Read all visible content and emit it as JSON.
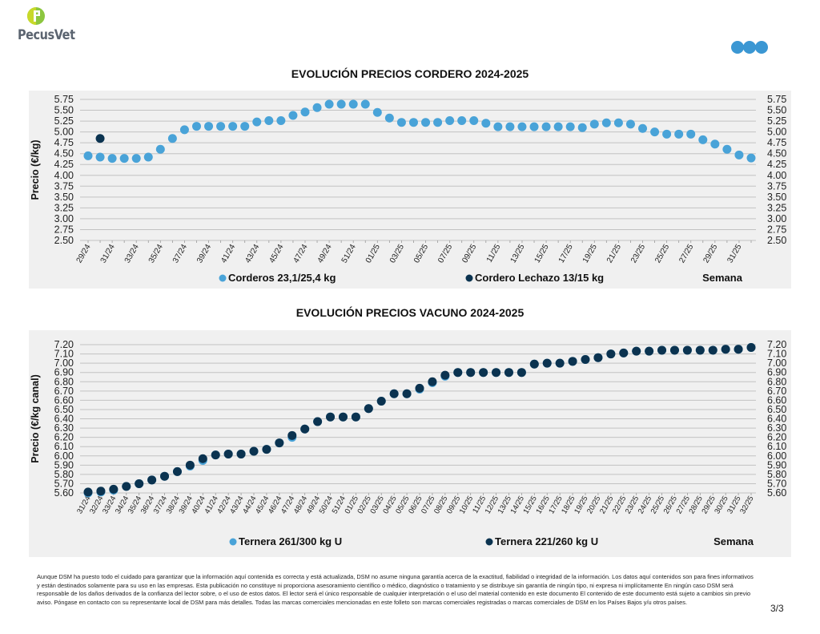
{
  "brand": {
    "name": "PecusVet",
    "logo_icon": "pecusvet-p-logo-icon",
    "accent": "#8cc63f",
    "dsm_dots_icon": "dsm-three-dots-icon",
    "dots_color": "#3b97d3"
  },
  "colors": {
    "light_blue": "#49a3d8",
    "dark_navy": "#0b3350",
    "panel_bg": "#f0f0f0",
    "grid": "#c8c8c8"
  },
  "chart_data": [
    {
      "type": "scatter",
      "title": "EVOLUCIÓN PRECIOS CORDERO 2024-2025",
      "ylabel": "Precio (€/kg)",
      "xlabel": "Semana",
      "ylim": [
        2.5,
        5.75
      ],
      "yticks": [
        "5.75",
        "5.50",
        "5.25",
        "5.00",
        "4.75",
        "4.50",
        "4.25",
        "4.00",
        "3.75",
        "3.50",
        "3.25",
        "3.00",
        "2.75",
        "2.50"
      ],
      "ytick_values": [
        5.75,
        5.5,
        5.25,
        5.0,
        4.75,
        4.5,
        4.25,
        4.0,
        3.75,
        3.5,
        3.25,
        3.0,
        2.75,
        2.5
      ],
      "grid": true,
      "legend": "bottom",
      "x_label_step": 2,
      "x": [
        "29/24",
        "30/24",
        "31/24",
        "32/24",
        "33/24",
        "34/24",
        "35/24",
        "36/24",
        "37/24",
        "38/24",
        "39/24",
        "40/24",
        "41/24",
        "42/24",
        "43/24",
        "44/24",
        "45/24",
        "46/24",
        "47/24",
        "48/24",
        "49/24",
        "50/24",
        "51/24",
        "52/24",
        "01/25",
        "02/25",
        "03/25",
        "04/25",
        "05/25",
        "06/25",
        "07/25",
        "08/25",
        "09/25",
        "10/25",
        "11/25",
        "12/25",
        "13/25",
        "14/25",
        "15/25",
        "16/25",
        "17/25",
        "18/25",
        "19/25",
        "20/25",
        "21/25",
        "22/25",
        "23/25",
        "24/25",
        "25/25",
        "26/25",
        "27/25",
        "28/25",
        "29/25",
        "30/25",
        "31/25",
        "32/25"
      ],
      "series": [
        {
          "name": "Corderos 23,1/25,4 kg",
          "color": "#49a3d8",
          "values": [
            4.45,
            4.42,
            4.39,
            4.39,
            4.39,
            4.42,
            4.6,
            4.85,
            5.05,
            5.13,
            5.13,
            5.13,
            5.13,
            5.13,
            5.23,
            5.26,
            5.26,
            5.38,
            5.46,
            5.56,
            5.64,
            5.64,
            5.64,
            5.64,
            5.45,
            5.32,
            5.22,
            5.22,
            5.22,
            5.22,
            5.26,
            5.26,
            5.26,
            5.2,
            5.12,
            5.12,
            5.12,
            5.12,
            5.12,
            5.12,
            5.12,
            5.1,
            5.18,
            5.21,
            5.21,
            5.18,
            5.08,
            5.0,
            4.95,
            4.95,
            4.95,
            4.82,
            4.72,
            4.6,
            4.47,
            4.4
          ]
        },
        {
          "name": "Cordero Lechazo 13/15 kg",
          "color": "#0b3350",
          "values": [
            null,
            4.85,
            null,
            null,
            null,
            null,
            null,
            null,
            null,
            null,
            null,
            null,
            null,
            null,
            null,
            null,
            null,
            null,
            null,
            null,
            null,
            null,
            null,
            null,
            null,
            null,
            null,
            null,
            null,
            null,
            null,
            null,
            null,
            null,
            null,
            null,
            null,
            null,
            null,
            null,
            null,
            null,
            null,
            null,
            null,
            null,
            null,
            null,
            null,
            null,
            null,
            null,
            null,
            null,
            null,
            null
          ]
        }
      ]
    },
    {
      "type": "scatter",
      "title": "EVOLUCIÓN PRECIOS VACUNO 2024-2025",
      "ylabel": "Precio (€/kg canal)",
      "xlabel": "Semana",
      "ylim": [
        5.6,
        7.2
      ],
      "yticks": [
        "7.20",
        "7.10",
        "7.00",
        "6.90",
        "6.80",
        "6.70",
        "6.60",
        "6.50",
        "6.40",
        "6.30",
        "6.20",
        "6.10",
        "6.00",
        "5.90",
        "5.80",
        "5.70",
        "5.60"
      ],
      "ytick_values": [
        7.2,
        7.1,
        7.0,
        6.9,
        6.8,
        6.7,
        6.6,
        6.5,
        6.4,
        6.3,
        6.2,
        6.1,
        6.0,
        5.9,
        5.8,
        5.7,
        5.6
      ],
      "grid": true,
      "legend": "bottom",
      "x_label_step": 1,
      "x": [
        "31/24",
        "32/24",
        "33/24",
        "34/24",
        "35/24",
        "36/24",
        "37/24",
        "38/24",
        "39/24",
        "40/24",
        "41/24",
        "42/24",
        "43/24",
        "44/24",
        "45/24",
        "46/24",
        "47/24",
        "48/24",
        "49/24",
        "50/24",
        "51/24",
        "01/25",
        "02/25",
        "03/25",
        "04/25",
        "05/25",
        "06/25",
        "07/25",
        "08/25",
        "09/25",
        "10/25",
        "11/25",
        "12/25",
        "13/25",
        "14/25",
        "15/25",
        "16/25",
        "17/25",
        "18/25",
        "19/25",
        "20/25",
        "21/25",
        "22/25",
        "23/25",
        "24/25",
        "25/25",
        "26/25",
        "27/25",
        "28/25",
        "29/25",
        "30/25",
        "31/25",
        "32/25"
      ],
      "series": [
        {
          "name": "Ternera 261/300 kg U",
          "color": "#49a3d8",
          "values": [
            5.6,
            5.61,
            5.63,
            5.67,
            5.7,
            5.74,
            5.78,
            5.83,
            5.89,
            5.95,
            6.01,
            6.02,
            6.02,
            6.05,
            6.07,
            6.14,
            6.2,
            6.29,
            6.37,
            6.42,
            6.42,
            6.42,
            6.51,
            6.59,
            6.67,
            6.67,
            6.72,
            6.79,
            6.86,
            6.9,
            6.9,
            6.9,
            6.9,
            6.9,
            6.9,
            6.99,
            7.0,
            7.0,
            7.02,
            7.04,
            7.06,
            7.1,
            7.11,
            7.13,
            7.13,
            7.14,
            7.14,
            7.14,
            7.14,
            7.14,
            7.15,
            7.15,
            7.17
          ]
        },
        {
          "name": "Ternera 221/260 kg U",
          "color": "#0b3350",
          "values": [
            5.61,
            5.62,
            5.64,
            5.67,
            5.7,
            5.74,
            5.78,
            5.83,
            5.9,
            5.97,
            6.01,
            6.02,
            6.02,
            6.05,
            6.07,
            6.14,
            6.22,
            6.29,
            6.37,
            6.42,
            6.42,
            6.42,
            6.51,
            6.59,
            6.67,
            6.67,
            6.73,
            6.8,
            6.87,
            6.9,
            6.9,
            6.9,
            6.9,
            6.9,
            6.9,
            6.99,
            7.0,
            7.0,
            7.02,
            7.04,
            7.06,
            7.1,
            7.11,
            7.13,
            7.13,
            7.14,
            7.14,
            7.14,
            7.14,
            7.14,
            7.15,
            7.15,
            7.17
          ]
        }
      ]
    }
  ],
  "footer": {
    "disclaimer": "Aunque DSM ha puesto todo el cuidado para garantizar que la información aquí contenida es correcta y está actualizada, DSM no asume ninguna garantía acerca de la exactitud, fiabilidad o integridad de la información. Los datos aquí contenidos son para fines informativos y están destinados solamente para su uso en las empresas. Esta publicación no constituye ni proporciona asesoramiento científico o médico, diagnóstico o tratamiento y se distribuye sin garantía de ningún tipo, ni expresa ni implícitamente En ningún caso DSM será responsable de los daños derivados de la confianza del lector sobre, o el uso de estos datos. El lector será el único responsable de cualquier interpretación o el uso del material contenido en este documento El contenido de este documento está sujeto a cambios sin previo aviso. Póngase en contacto con su representante local de DSM para más detalles. Todas las marcas comerciales mencionadas en este folleto son marcas comerciales registradas o marcas comerciales de DSM en los Países Bajos y/u otros países.",
    "page": "3/3"
  }
}
